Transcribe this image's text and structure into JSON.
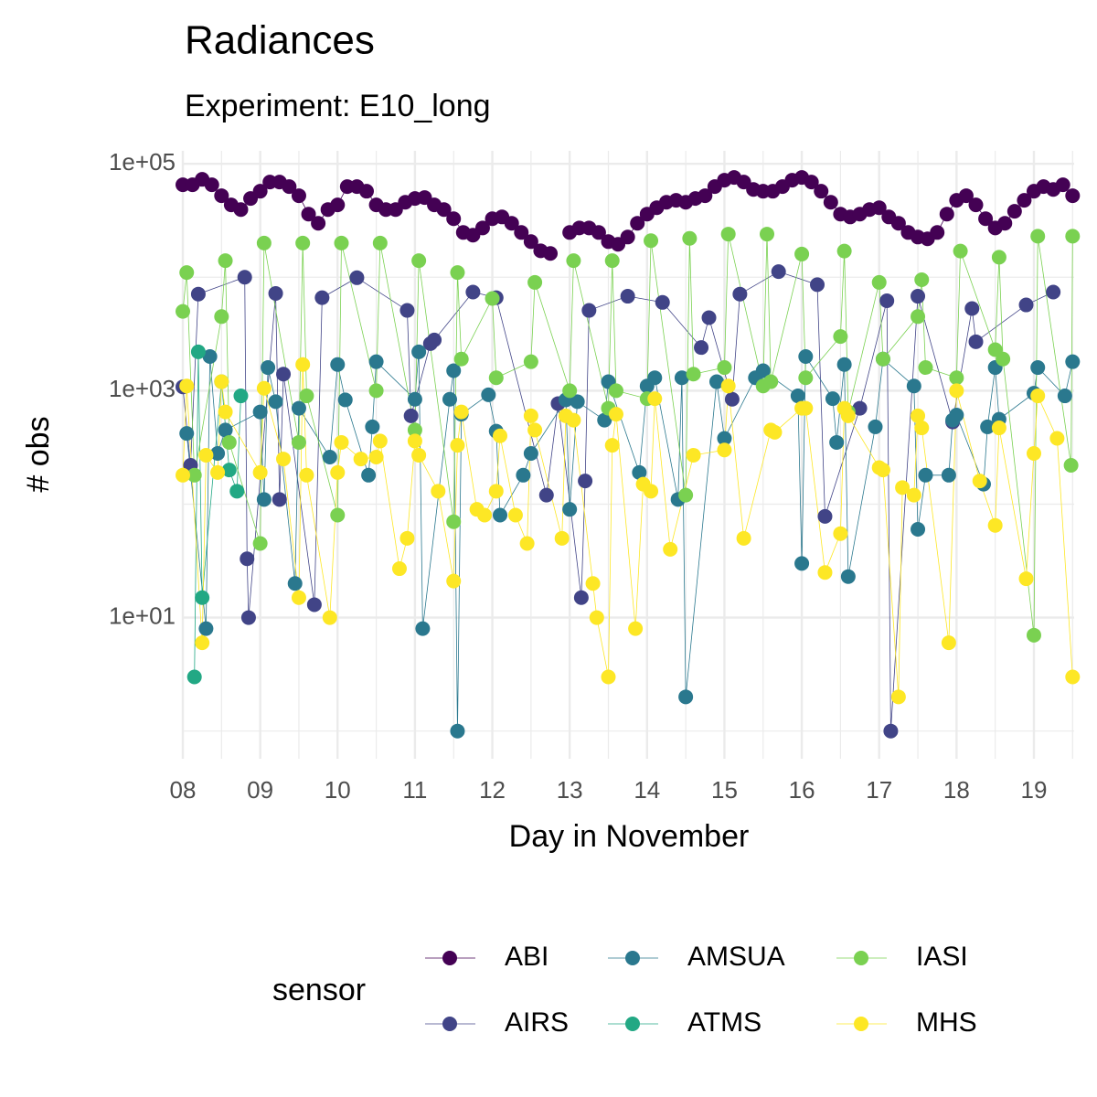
{
  "chart_data": {
    "type": "line",
    "title": "Radiances",
    "subtitle": "Experiment: E10_long",
    "x_label": "Day in November",
    "y_label": "# obs",
    "legend_title": "sensor",
    "log_y": true,
    "grid": true,
    "minor_grid": true,
    "legend_position": "bottom",
    "xlim": [
      8,
      19.52
    ],
    "ylim": [
      0.57,
      130000
    ],
    "xticks": [
      {
        "value": 8,
        "label": "08"
      },
      {
        "value": 9,
        "label": "09"
      },
      10,
      11,
      12,
      13,
      14,
      15,
      16,
      17,
      18,
      19
    ],
    "yticks": [
      {
        "value": 10,
        "label": "1e+01"
      },
      {
        "value": 1000,
        "label": "1e+03"
      },
      {
        "value": 100000,
        "label": "1e+05"
      }
    ],
    "series": [
      {
        "name": "ABI",
        "color": "#440154",
        "x": [
          8,
          8.125,
          8.25,
          8.375,
          8.5,
          8.625,
          8.75,
          8.875,
          9,
          9.125,
          9.25,
          9.375,
          9.5,
          9.625,
          9.75,
          9.875,
          10,
          10.125,
          10.25,
          10.375,
          10.5,
          10.625,
          10.75,
          10.875,
          11,
          11.125,
          11.25,
          11.375,
          11.5,
          11.625,
          11.75,
          11.875,
          12,
          12.125,
          12.25,
          12.375,
          12.5,
          12.625,
          12.75,
          12.875,
          13,
          13.125,
          13.25,
          13.375,
          13.5,
          13.625,
          13.75,
          13.875,
          14,
          14.125,
          14.25,
          14.375,
          14.5,
          14.625,
          14.75,
          14.875,
          15,
          15.125,
          15.25,
          15.375,
          15.5,
          15.625,
          15.75,
          15.875,
          16,
          16.125,
          16.25,
          16.375,
          16.5,
          16.625,
          16.75,
          16.875,
          17,
          17.125,
          17.25,
          17.375,
          17.5,
          17.625,
          17.75,
          17.875,
          18,
          18.125,
          18.25,
          18.375,
          18.5,
          18.625,
          18.75,
          18.875,
          19,
          19.125,
          19.25,
          19.375,
          19.5
        ],
        "values": [
          65300,
          65300,
          72900,
          65300,
          52300,
          43400,
          39500,
          49400,
          57300,
          69000,
          69000,
          62900,
          52300,
          36000,
          29900,
          39500,
          43400,
          62900,
          62900,
          57300,
          43400,
          39500,
          39500,
          45800,
          49400,
          50400,
          43400,
          39500,
          32800,
          24800,
          23500,
          27200,
          32800,
          34000,
          29900,
          24800,
          20600,
          17100,
          16200,
          null,
          24800,
          27200,
          27200,
          24800,
          20600,
          19500,
          22600,
          29900,
          36000,
          41000,
          45800,
          47600,
          45800,
          49400,
          52300,
          62900,
          71700,
          75700,
          69000,
          59400,
          57300,
          57300,
          62900,
          71700,
          75700,
          69000,
          57300,
          45800,
          36000,
          34000,
          36000,
          39500,
          41000,
          34000,
          29900,
          24800,
          22600,
          21800,
          24800,
          36000,
          47600,
          52300,
          43400,
          32800,
          27200,
          29900,
          38100,
          47600,
          57300,
          62900,
          59400,
          65300,
          52300
        ]
      },
      {
        "name": "AIRS",
        "color": "#414487",
        "x": [
          8,
          8.1,
          8.2,
          8.8,
          8.83,
          8.85,
          9.2,
          9.25,
          9.3,
          9.7,
          9.8,
          10.25,
          10.9,
          10.95,
          11.2,
          11.25,
          11.75,
          12.05,
          12.7,
          12.85,
          13.15,
          13.2,
          13.25,
          13.75,
          14.2,
          14.7,
          14.8,
          15.1,
          15.2,
          15.7,
          16.2,
          16.3,
          16.75,
          17.1,
          17.15,
          17.5,
          17.95,
          18.2,
          18.25,
          18.9,
          19.25
        ],
        "values": [
          1080,
          220,
          7100,
          10000,
          33,
          10,
          7200,
          110,
          1400,
          13,
          6600,
          9900,
          5100,
          600,
          2600,
          2800,
          7400,
          6600,
          120,
          770,
          15,
          160,
          5100,
          6800,
          6000,
          2400,
          4400,
          840,
          7100,
          11200,
          8600,
          78,
          700,
          6200,
          1,
          6800,
          530,
          5300,
          2700,
          5700,
          7400
        ]
      },
      {
        "name": "AMSUA",
        "color": "#2A788E",
        "x": [
          8.05,
          8.3,
          8.35,
          8.45,
          8.55,
          9,
          9.05,
          9.1,
          9.2,
          9.45,
          9.5,
          9.9,
          10,
          10.1,
          10.4,
          10.45,
          10.5,
          11,
          11.05,
          11.1,
          11.45,
          11.5,
          11.55,
          11.6,
          11.95,
          12.05,
          12.1,
          12.4,
          12.5,
          12.95,
          13,
          13.1,
          13.45,
          13.5,
          13.9,
          14,
          14.1,
          14.4,
          14.45,
          14.5,
          14.9,
          15,
          15.4,
          15.5,
          15.95,
          16,
          16.05,
          16.4,
          16.45,
          16.55,
          16.6,
          16.95,
          17.05,
          17.45,
          17.5,
          17.6,
          17.9,
          17.95,
          18,
          18.35,
          18.4,
          18.5,
          18.55,
          19,
          19.05,
          19.4,
          19.5
        ],
        "values": [
          420,
          8,
          2000,
          280,
          450,
          650,
          110,
          1600,
          800,
          20,
          700,
          260,
          1700,
          830,
          180,
          480,
          1800,
          840,
          2200,
          8,
          840,
          1500,
          1,
          620,
          920,
          440,
          80,
          180,
          280,
          830,
          90,
          800,
          550,
          1200,
          190,
          1100,
          1300,
          110,
          1300,
          2,
          1200,
          380,
          1300,
          1500,
          900,
          30,
          2000,
          850,
          350,
          1700,
          23,
          480,
          1900,
          1100,
          60,
          180,
          180,
          550,
          610,
          150,
          480,
          1600,
          560,
          950,
          1600,
          900,
          1800
        ]
      },
      {
        "name": "ATMS",
        "color": "#22A884",
        "x": [
          8.15,
          8.2,
          8.25,
          8.5,
          8.6,
          8.7,
          8.75
        ],
        "values": [
          3,
          2200,
          15,
          1200,
          200,
          130,
          900
        ]
      },
      {
        "name": "IASI",
        "color": "#7AD151",
        "x": [
          8,
          8.05,
          8.15,
          8.5,
          8.55,
          8.6,
          9,
          9.05,
          9.5,
          9.55,
          9.6,
          10,
          10.05,
          10.5,
          10.55,
          11,
          11.05,
          11.5,
          11.55,
          11.6,
          12,
          12.05,
          12.5,
          12.55,
          13,
          13.05,
          13.5,
          13.55,
          13.6,
          14,
          14.05,
          14.5,
          14.55,
          14.6,
          15,
          15.05,
          15.5,
          15.55,
          15.6,
          16,
          16.05,
          16.5,
          16.55,
          16.6,
          17,
          17.05,
          17.5,
          17.55,
          17.6,
          18,
          18.05,
          18.5,
          18.55,
          18.6,
          19,
          19.05,
          19.48,
          19.5
        ],
        "values": [
          5000,
          11000,
          180,
          4500,
          14000,
          350,
          45,
          20000,
          350,
          20000,
          900,
          80,
          20000,
          1000,
          20000,
          450,
          14000,
          70,
          11000,
          1900,
          6500,
          1300,
          1800,
          9000,
          1000,
          14000,
          700,
          14000,
          1000,
          850,
          21000,
          120,
          22000,
          1400,
          1600,
          24000,
          1100,
          24000,
          1200,
          16000,
          1300,
          3000,
          17000,
          650,
          9000,
          1900,
          4500,
          9500,
          1600,
          1300,
          17000,
          2300,
          15000,
          1900,
          7,
          23000,
          220,
          23000
        ]
      },
      {
        "name": "MHS",
        "color": "#FDE725",
        "x": [
          8,
          8.05,
          8.25,
          8.3,
          8.45,
          8.5,
          8.55,
          9,
          9.05,
          9.3,
          9.5,
          9.55,
          9.6,
          9.9,
          10,
          10.05,
          10.3,
          10.5,
          10.55,
          10.8,
          10.9,
          11,
          11.05,
          11.3,
          11.5,
          11.55,
          11.6,
          11.8,
          11.9,
          12.05,
          12.1,
          12.3,
          12.45,
          12.5,
          12.55,
          12.9,
          12.95,
          13.05,
          13.3,
          13.35,
          13.5,
          13.55,
          13.6,
          13.85,
          13.95,
          14.05,
          14.1,
          14.3,
          14.6,
          15,
          15.05,
          15.25,
          15.6,
          15.65,
          16,
          16.05,
          16.3,
          16.5,
          16.55,
          16.6,
          17,
          17.05,
          17.25,
          17.3,
          17.45,
          17.5,
          17.55,
          17.9,
          18,
          18.3,
          18.5,
          18.55,
          18.9,
          19,
          19.05,
          19.3,
          19.5
        ],
        "values": [
          180,
          1100,
          6,
          270,
          190,
          1200,
          650,
          190,
          1050,
          250,
          15,
          1700,
          180,
          10,
          190,
          350,
          250,
          260,
          360,
          27,
          50,
          360,
          270,
          130,
          21,
          330,
          650,
          90,
          80,
          130,
          400,
          80,
          45,
          600,
          450,
          50,
          600,
          550,
          20,
          10,
          3,
          330,
          620,
          8,
          150,
          130,
          850,
          40,
          270,
          300,
          1100,
          50,
          450,
          430,
          700,
          700,
          25,
          55,
          700,
          600,
          210,
          200,
          2,
          140,
          120,
          600,
          470,
          6,
          1000,
          160,
          65,
          470,
          22,
          280,
          900,
          380,
          3
        ]
      }
    ]
  }
}
